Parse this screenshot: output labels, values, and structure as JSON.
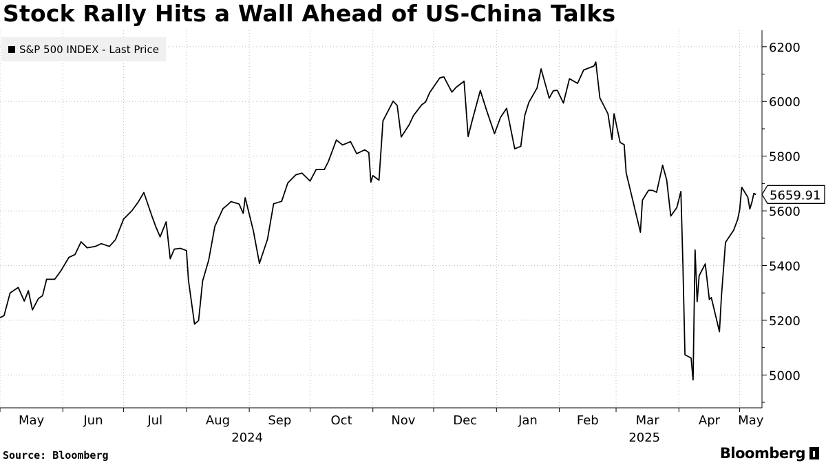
{
  "title": "Stock Rally Hits a Wall Ahead of US-China Talks",
  "source": "Source: Bloomberg",
  "brand": "Bloomberg",
  "brand_icon": "bloomberg-terminal-icon",
  "chart_data": {
    "type": "line",
    "title": "Stock Rally Hits a Wall Ahead of US-China Talks",
    "series": [
      {
        "name": "S&P 500 INDEX - Last Price",
        "color": "#000000",
        "last_label": "5659.91",
        "points": [
          [
            "2024-05-01",
            5210
          ],
          [
            "2024-05-03",
            5217
          ],
          [
            "2024-05-06",
            5300
          ],
          [
            "2024-05-08",
            5310
          ],
          [
            "2024-05-10",
            5320
          ],
          [
            "2024-05-13",
            5270
          ],
          [
            "2024-05-15",
            5308
          ],
          [
            "2024-05-17",
            5238
          ],
          [
            "2024-05-20",
            5280
          ],
          [
            "2024-05-22",
            5290
          ],
          [
            "2024-05-24",
            5350
          ],
          [
            "2024-05-28",
            5350
          ],
          [
            "2024-05-31",
            5380
          ],
          [
            "2024-06-04",
            5430
          ],
          [
            "2024-06-07",
            5440
          ],
          [
            "2024-06-10",
            5487
          ],
          [
            "2024-06-13",
            5465
          ],
          [
            "2024-06-17",
            5470
          ],
          [
            "2024-06-20",
            5480
          ],
          [
            "2024-06-24",
            5470
          ],
          [
            "2024-06-27",
            5495
          ],
          [
            "2024-07-01",
            5570
          ],
          [
            "2024-07-05",
            5600
          ],
          [
            "2024-07-08",
            5630
          ],
          [
            "2024-07-11",
            5667
          ],
          [
            "2024-07-15",
            5580
          ],
          [
            "2024-07-17",
            5540
          ],
          [
            "2024-07-19",
            5505
          ],
          [
            "2024-07-22",
            5560
          ],
          [
            "2024-07-24",
            5425
          ],
          [
            "2024-07-26",
            5460
          ],
          [
            "2024-07-29",
            5463
          ],
          [
            "2024-08-01",
            5455
          ],
          [
            "2024-08-02",
            5346
          ],
          [
            "2024-08-05",
            5186
          ],
          [
            "2024-08-07",
            5199
          ],
          [
            "2024-08-09",
            5344
          ],
          [
            "2024-08-12",
            5420
          ],
          [
            "2024-08-15",
            5543
          ],
          [
            "2024-08-19",
            5608
          ],
          [
            "2024-08-21",
            5620
          ],
          [
            "2024-08-23",
            5634
          ],
          [
            "2024-08-27",
            5625
          ],
          [
            "2024-08-29",
            5591
          ],
          [
            "2024-08-30",
            5648
          ],
          [
            "2024-09-03",
            5528
          ],
          [
            "2024-09-06",
            5408
          ],
          [
            "2024-09-10",
            5496
          ],
          [
            "2024-09-13",
            5626
          ],
          [
            "2024-09-17",
            5635
          ],
          [
            "2024-09-20",
            5702
          ],
          [
            "2024-09-24",
            5732
          ],
          [
            "2024-09-27",
            5738
          ],
          [
            "2024-10-01",
            5709
          ],
          [
            "2024-10-04",
            5751
          ],
          [
            "2024-10-08",
            5751
          ],
          [
            "2024-10-10",
            5780
          ],
          [
            "2024-10-14",
            5859
          ],
          [
            "2024-10-17",
            5841
          ],
          [
            "2024-10-21",
            5853
          ],
          [
            "2024-10-24",
            5809
          ],
          [
            "2024-10-28",
            5823
          ],
          [
            "2024-10-30",
            5813
          ],
          [
            "2024-10-31",
            5705
          ],
          [
            "2024-11-01",
            5729
          ],
          [
            "2024-11-04",
            5712
          ],
          [
            "2024-11-06",
            5929
          ],
          [
            "2024-11-11",
            6001
          ],
          [
            "2024-11-13",
            5985
          ],
          [
            "2024-11-15",
            5870
          ],
          [
            "2024-11-19",
            5916
          ],
          [
            "2024-11-21",
            5948
          ],
          [
            "2024-11-25",
            5987
          ],
          [
            "2024-11-27",
            5998
          ],
          [
            "2024-11-29",
            6032
          ],
          [
            "2024-12-04",
            6086
          ],
          [
            "2024-12-06",
            6090
          ],
          [
            "2024-12-10",
            6034
          ],
          [
            "2024-12-12",
            6051
          ],
          [
            "2024-12-16",
            6074
          ],
          [
            "2024-12-18",
            5872
          ],
          [
            "2024-12-20",
            5930
          ],
          [
            "2024-12-24",
            6040
          ],
          [
            "2024-12-27",
            5970
          ],
          [
            "2024-12-31",
            5882
          ],
          [
            "2025-01-03",
            5942
          ],
          [
            "2025-01-06",
            5975
          ],
          [
            "2025-01-10",
            5827
          ],
          [
            "2025-01-13",
            5836
          ],
          [
            "2025-01-15",
            5950
          ],
          [
            "2025-01-17",
            5997
          ],
          [
            "2025-01-21",
            6049
          ],
          [
            "2025-01-23",
            6119
          ],
          [
            "2025-01-27",
            6012
          ],
          [
            "2025-01-29",
            6039
          ],
          [
            "2025-01-31",
            6041
          ],
          [
            "2025-02-03",
            5994
          ],
          [
            "2025-02-06",
            6083
          ],
          [
            "2025-02-10",
            6066
          ],
          [
            "2025-02-13",
            6115
          ],
          [
            "2025-02-18",
            6129
          ],
          [
            "2025-02-19",
            6144
          ],
          [
            "2025-02-21",
            6013
          ],
          [
            "2025-02-25",
            5955
          ],
          [
            "2025-02-27",
            5861
          ],
          [
            "2025-02-28",
            5955
          ],
          [
            "2025-03-03",
            5850
          ],
          [
            "2025-03-05",
            5842
          ],
          [
            "2025-03-06",
            5739
          ],
          [
            "2025-03-10",
            5615
          ],
          [
            "2025-03-13",
            5522
          ],
          [
            "2025-03-14",
            5639
          ],
          [
            "2025-03-17",
            5675
          ],
          [
            "2025-03-19",
            5675
          ],
          [
            "2025-03-21",
            5668
          ],
          [
            "2025-03-24",
            5767
          ],
          [
            "2025-03-26",
            5712
          ],
          [
            "2025-03-28",
            5581
          ],
          [
            "2025-03-31",
            5612
          ],
          [
            "2025-04-02",
            5671
          ],
          [
            "2025-04-03",
            5397
          ],
          [
            "2025-04-04",
            5074
          ],
          [
            "2025-04-07",
            5062
          ],
          [
            "2025-04-08",
            4982
          ],
          [
            "2025-04-09",
            5457
          ],
          [
            "2025-04-10",
            5268
          ],
          [
            "2025-04-11",
            5363
          ],
          [
            "2025-04-14",
            5406
          ],
          [
            "2025-04-16",
            5276
          ],
          [
            "2025-04-17",
            5283
          ],
          [
            "2025-04-21",
            5158
          ],
          [
            "2025-04-22",
            5288
          ],
          [
            "2025-04-24",
            5485
          ],
          [
            "2025-04-28",
            5529
          ],
          [
            "2025-04-30",
            5569
          ],
          [
            "2025-05-01",
            5604
          ],
          [
            "2025-05-02",
            5686
          ],
          [
            "2025-05-05",
            5650
          ],
          [
            "2025-05-06",
            5607
          ],
          [
            "2025-05-07",
            5631
          ],
          [
            "2025-05-08",
            5664
          ],
          [
            "2025-05-09",
            5659.91
          ]
        ]
      }
    ],
    "ylim": [
      4880,
      6260
    ],
    "yticks": [
      5000,
      5200,
      5400,
      5600,
      5800,
      6000,
      6200
    ],
    "xlim": [
      "2024-05-01",
      "2025-05-12"
    ],
    "x_month_ticks": [
      {
        "label": "May",
        "date": "2024-05-01"
      },
      {
        "label": "Jun",
        "date": "2024-06-01"
      },
      {
        "label": "Jul",
        "date": "2024-07-01"
      },
      {
        "label": "Aug",
        "date": "2024-08-01"
      },
      {
        "label": "Sep",
        "date": "2024-09-01"
      },
      {
        "label": "Oct",
        "date": "2024-10-01"
      },
      {
        "label": "Nov",
        "date": "2024-11-01"
      },
      {
        "label": "Dec",
        "date": "2024-12-01"
      },
      {
        "label": "Jan",
        "date": "2025-01-01"
      },
      {
        "label": "Feb",
        "date": "2025-02-01"
      },
      {
        "label": "Mar",
        "date": "2025-03-01"
      },
      {
        "label": "Apr",
        "date": "2025-04-01"
      },
      {
        "label": "May",
        "date": "2025-05-01"
      }
    ],
    "year_labels": [
      {
        "label": "2024",
        "date": "2024-08-31"
      },
      {
        "label": "2025",
        "date": "2025-03-15"
      }
    ],
    "y_axis_side": "right",
    "grid": "dotted",
    "legend_position": "top-left"
  }
}
